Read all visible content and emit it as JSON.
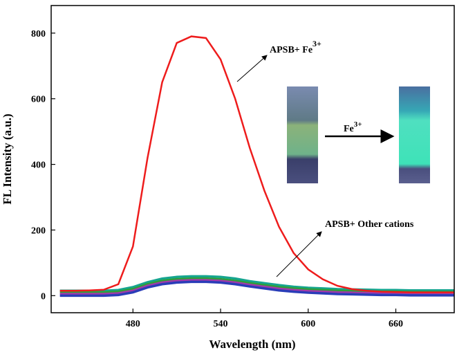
{
  "chart_data": {
    "type": "line",
    "x_label": "Wavelength (nm)",
    "y_label": "FL Intensity (a.u.)",
    "xlim": [
      424,
      700
    ],
    "ylim": [
      -52,
      884
    ],
    "xticks": [
      480,
      540,
      600,
      660
    ],
    "yticks": [
      0,
      200,
      400,
      600,
      800
    ],
    "x": [
      430,
      440,
      450,
      460,
      470,
      480,
      490,
      500,
      510,
      520,
      530,
      540,
      550,
      560,
      570,
      580,
      590,
      600,
      610,
      620,
      630,
      640,
      650,
      660,
      670,
      680,
      690,
      700
    ],
    "series": [
      {
        "color": "#16a58f",
        "values": [
          15,
          15,
          15,
          15,
          17,
          26,
          41,
          52,
          57,
          59,
          59,
          57,
          52,
          44,
          38,
          32,
          27,
          24,
          22,
          20,
          19,
          18,
          17,
          17,
          16,
          16,
          16,
          16
        ]
      },
      {
        "color": "#2e9e3a",
        "values": [
          10,
          10,
          10,
          10,
          12,
          20,
          35,
          45,
          50,
          52,
          52,
          50,
          45,
          38,
          32,
          26,
          22,
          19,
          17,
          15,
          14,
          13,
          12,
          12,
          11,
          11,
          11,
          11
        ]
      },
      {
        "color": "#a33aa8",
        "values": [
          5,
          5,
          5,
          5,
          7,
          15,
          30,
          40,
          45,
          47,
          47,
          45,
          40,
          33,
          27,
          21,
          17,
          14,
          12,
          10,
          9,
          8,
          7,
          7,
          6,
          6,
          6,
          6
        ]
      },
      {
        "color": "#2a3db8",
        "values": [
          0,
          0,
          0,
          0,
          2,
          10,
          25,
          35,
          40,
          42,
          42,
          40,
          35,
          28,
          22,
          16,
          12,
          9,
          7,
          5,
          4,
          3,
          2,
          2,
          1,
          1,
          1,
          1
        ]
      },
      {
        "color": "#ee1c1c",
        "values": [
          15,
          15,
          16,
          18,
          35,
          150,
          420,
          650,
          770,
          790,
          785,
          720,
          600,
          450,
          320,
          210,
          130,
          80,
          50,
          30,
          20,
          15,
          12,
          11,
          10,
          10,
          10,
          10
        ]
      }
    ],
    "annotations": [
      {
        "text": "APSB+ Fe",
        "sup": "3+"
      },
      {
        "text": "APSB+ Other cations"
      },
      {
        "text": "Fe",
        "sup": "3+"
      }
    ]
  }
}
